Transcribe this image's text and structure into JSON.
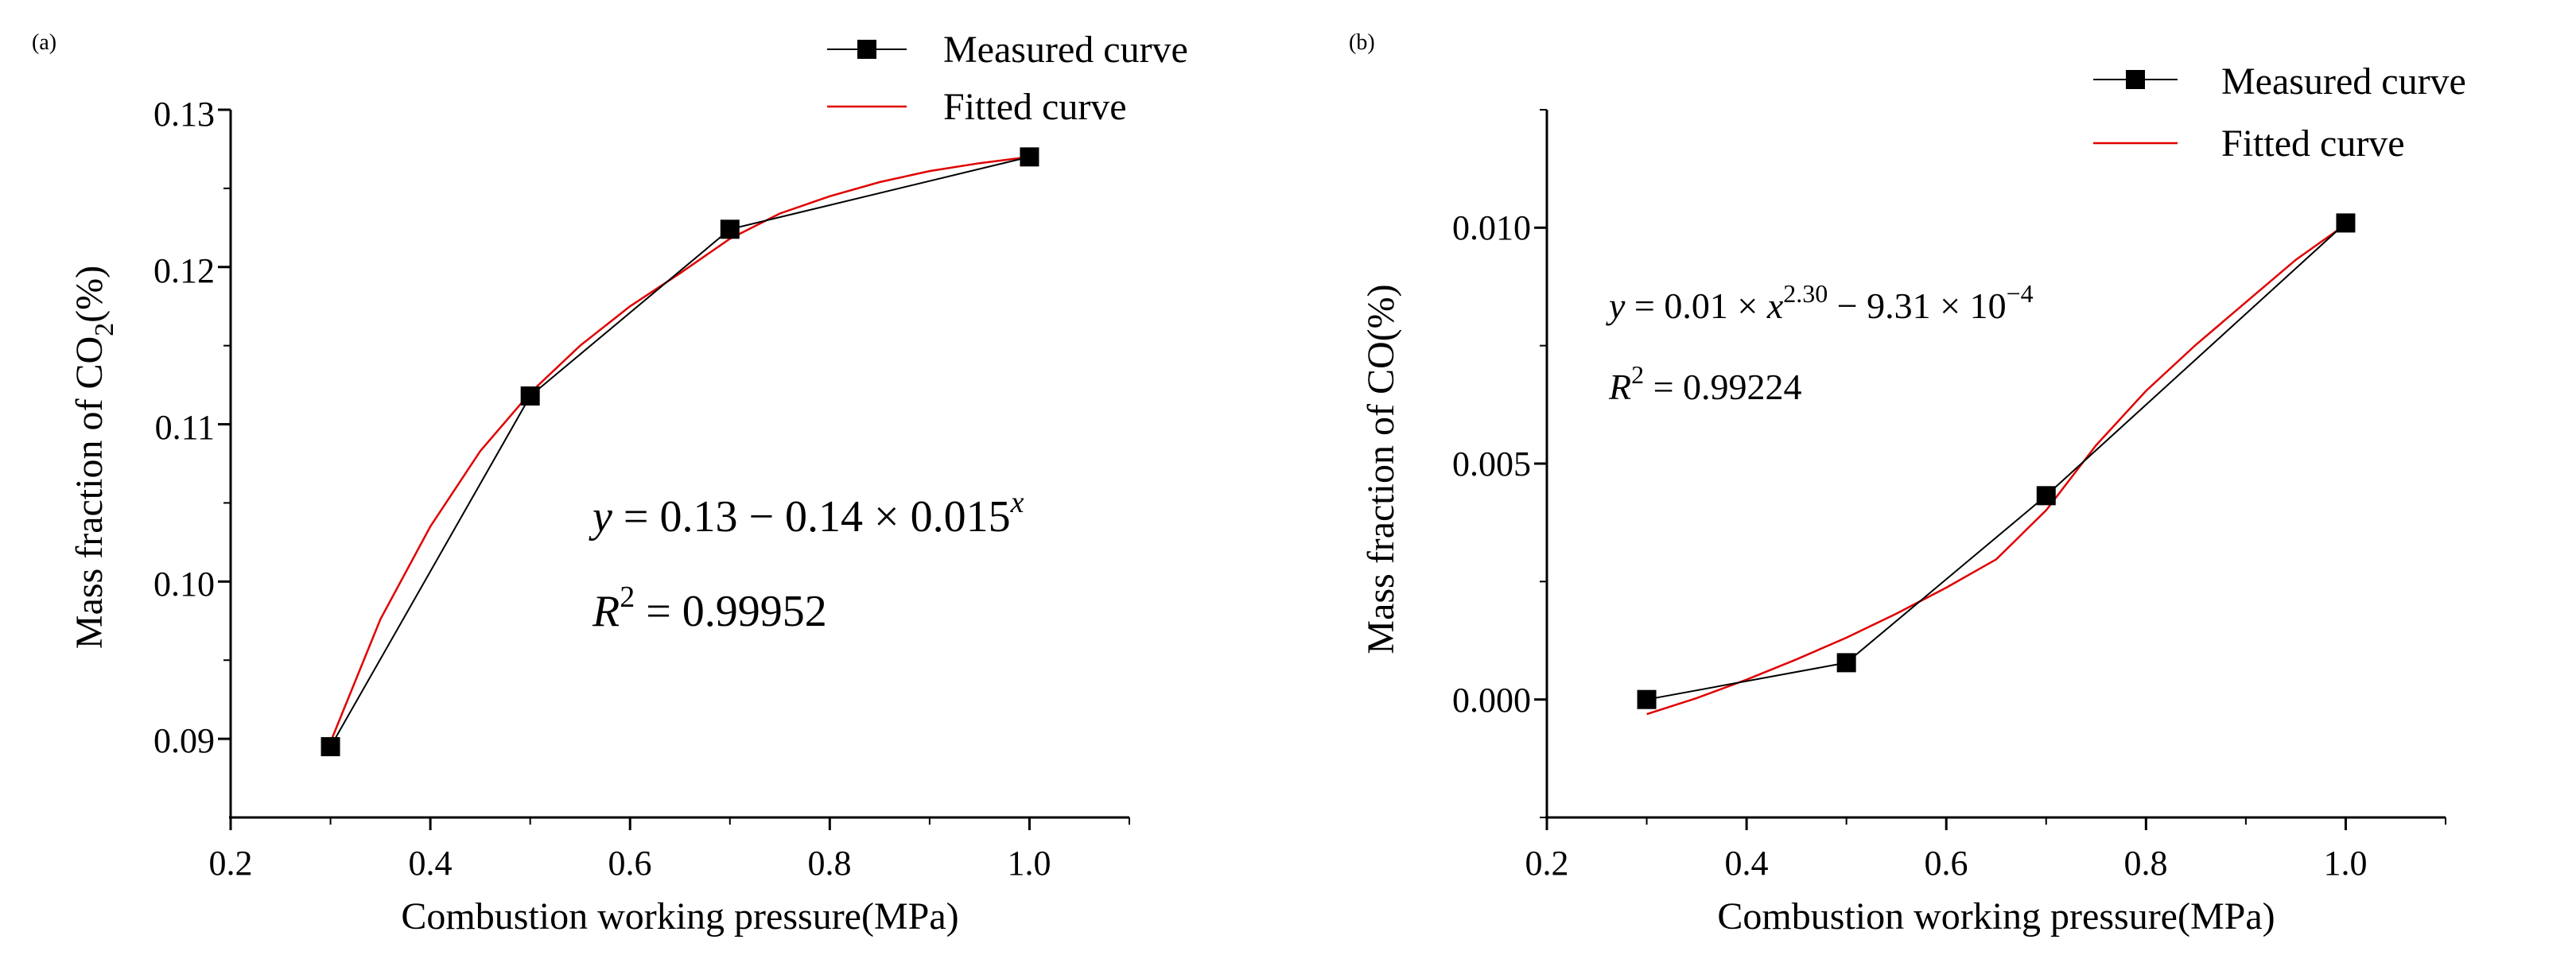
{
  "chart_data": [
    {
      "type": "line",
      "panel_label": "(a)",
      "xlabel": "Combustion working pressure(MPa)",
      "ylabel_main": "Mass fraction of CO",
      "ylabel_sub": "2",
      "ylabel_tail": "(%)",
      "xlim": [
        0.2,
        1.1
      ],
      "ylim": [
        0.085,
        0.13
      ],
      "xticks": [
        "0.2",
        "0.4",
        "0.6",
        "0.8",
        "1.0"
      ],
      "yticks": [
        "0.09",
        "0.10",
        "0.11",
        "0.12",
        "0.13"
      ],
      "legend_placement": "top-right",
      "series": [
        {
          "name": "Measured curve",
          "x": [
            0.3,
            0.5,
            0.7,
            1.0
          ],
          "y": [
            0.0895,
            0.1118,
            0.1224,
            0.127
          ],
          "color": "#000000",
          "marker": "square"
        },
        {
          "name": "Fitted curve",
          "x": [
            0.3,
            0.35,
            0.4,
            0.45,
            0.5,
            0.55,
            0.6,
            0.65,
            0.7,
            0.75,
            0.8,
            0.85,
            0.9,
            0.95,
            1.0
          ],
          "y": [
            0.0898,
            0.0976,
            0.1035,
            0.1083,
            0.112,
            0.115,
            0.1175,
            0.1196,
            0.1218,
            0.1234,
            0.1245,
            0.1254,
            0.1261,
            0.1266,
            0.127
          ],
          "color": "#e00000"
        }
      ],
      "annotation": {
        "eq_y": "y",
        "eq_body": " = 0.13 − 0.14 × 0.015",
        "eq_exp": "x",
        "r2_r": "R",
        "r2_exp": "2",
        "r2_val": " = 0.99952"
      }
    },
    {
      "type": "line",
      "panel_label": "(b)",
      "xlabel": "Combustion working pressure(MPa)",
      "ylabel": "Mass fraction of CO(%)",
      "xlim": [
        0.2,
        1.1
      ],
      "ylim": [
        -0.0025,
        0.0125
      ],
      "xticks": [
        "0.2",
        "0.4",
        "0.6",
        "0.8",
        "1.0"
      ],
      "yticks": [
        "0.000",
        "0.005",
        "0.010"
      ],
      "legend_placement": "top-right",
      "series": [
        {
          "name": "Measured curve",
          "x": [
            0.3,
            0.5,
            0.7,
            1.0
          ],
          "y": [
            0.0,
            0.00078,
            0.00432,
            0.0101
          ],
          "color": "#000000",
          "marker": "square"
        },
        {
          "name": "Fitted curve",
          "x": [
            0.3,
            0.35,
            0.4,
            0.45,
            0.5,
            0.55,
            0.6,
            0.65,
            0.7,
            0.75,
            0.8,
            0.85,
            0.9,
            0.95,
            1.0
          ],
          "y": [
            -0.00031,
            3e-05,
            0.00042,
            0.00085,
            0.00131,
            0.00182,
            0.00237,
            0.00297,
            0.00401,
            0.00539,
            0.00654,
            0.00752,
            0.00842,
            0.00932,
            0.01007
          ],
          "color": "#e00000"
        }
      ],
      "annotation": {
        "eq_y": "y",
        "eq_body": " = 0.01 × ",
        "eq_x": "x",
        "eq_exp": "2.30",
        "eq_tail": " − 9.31 × 10",
        "eq_tail_exp": "−4",
        "r2_r": "R",
        "r2_exp": "2",
        "r2_val": " = 0.99224"
      }
    }
  ]
}
